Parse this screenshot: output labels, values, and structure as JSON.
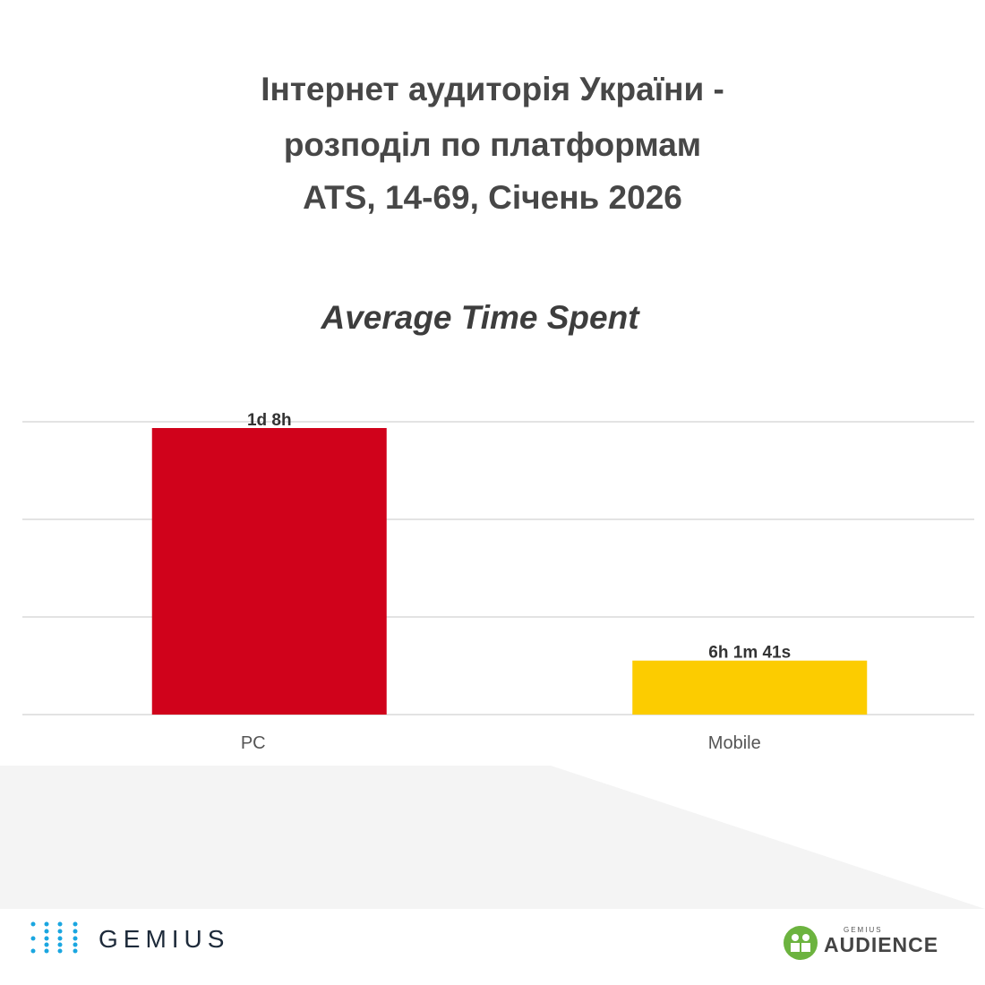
{
  "chart_data": {
    "type": "bar",
    "title": [
      "Інтернет аудиторія України -",
      "розподіл по платформам",
      "ATS, 14-69, Січень 2026"
    ],
    "subtitle": "Average Time Spent",
    "categories": [
      "PC",
      "Mobile"
    ],
    "values": [
      32,
      6.028
    ],
    "value_labels": [
      "1d 8h",
      "6h 1m 41s"
    ],
    "colors": [
      "#d0021b",
      "#fccc00"
    ],
    "ylim": [
      0,
      32.7
    ],
    "gridlines": [
      0,
      10.9,
      21.8,
      32.7
    ],
    "grid": true
  },
  "footer": {
    "brand": "GEMIUS",
    "product_top": "GEMIUS",
    "product": "AUDIENCE"
  }
}
